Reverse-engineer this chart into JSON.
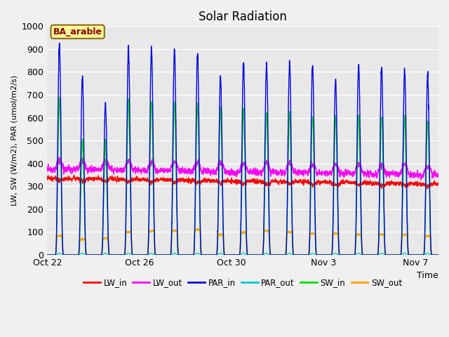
{
  "title": "Solar Radiation",
  "xlabel": "Time",
  "ylabel": "LW, SW (W/m2), PAR (umol/m2/s)",
  "ylim": [
    0,
    1000
  ],
  "fig_bg_color": "#f0f0f0",
  "plot_bg_color": "#e8e8e8",
  "annotation_text": "BA_arable",
  "annotation_color": "#8B0000",
  "annotation_bg": "#FFFF99",
  "annotation_border": "#8B6914",
  "x_tick_labels": [
    "Oct 22",
    "Oct 26",
    "Oct 30",
    "Nov 3",
    "Nov 7"
  ],
  "x_tick_positions": [
    0,
    4,
    8,
    12,
    16
  ],
  "ytick_labels": [
    "0",
    "100",
    "200",
    "300",
    "400",
    "500",
    "600",
    "700",
    "800",
    "900",
    "1000"
  ],
  "series": {
    "LW_in": {
      "color": "#FF0000",
      "lw": 1.0
    },
    "LW_out": {
      "color": "#FF00FF",
      "lw": 1.0
    },
    "PAR_in": {
      "color": "#0000DD",
      "lw": 1.0
    },
    "PAR_out": {
      "color": "#00CCCC",
      "lw": 1.0
    },
    "SW_in": {
      "color": "#00DD00",
      "lw": 1.0
    },
    "SW_out": {
      "color": "#FFA500",
      "lw": 1.2
    }
  },
  "legend_order": [
    "LW_in",
    "LW_out",
    "PAR_in",
    "PAR_out",
    "SW_in",
    "SW_out"
  ],
  "n_days": 17
}
